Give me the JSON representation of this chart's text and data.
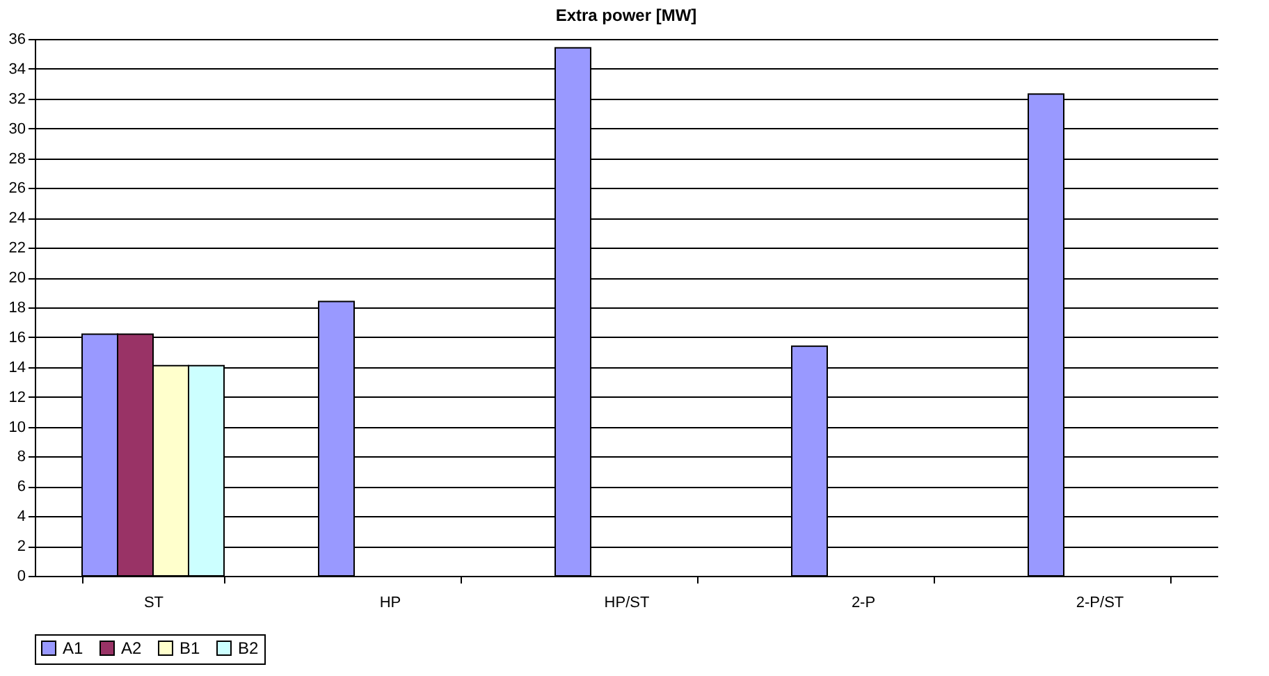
{
  "chart_data": {
    "type": "bar",
    "title": "Extra power [MW]",
    "categories": [
      "ST",
      "HP",
      "HP/ST",
      "2-P",
      "2-P/ST"
    ],
    "series": [
      {
        "name": "A1",
        "color": "#9999ff",
        "values": [
          16.2,
          18.4,
          35.4,
          15.4,
          32.3
        ]
      },
      {
        "name": "A2",
        "color": "#993366",
        "values": [
          16.2,
          null,
          null,
          null,
          null
        ]
      },
      {
        "name": "B1",
        "color": "#ffffcc",
        "values": [
          14.1,
          null,
          null,
          null,
          null
        ]
      },
      {
        "name": "B2",
        "color": "#ccffff",
        "values": [
          14.1,
          null,
          null,
          null,
          null
        ]
      }
    ],
    "ylim": [
      0,
      36
    ],
    "yticks": [
      0,
      2,
      4,
      6,
      8,
      10,
      12,
      14,
      16,
      18,
      20,
      22,
      24,
      26,
      28,
      30,
      32,
      34,
      36
    ],
    "grid": "y",
    "legend": "bottom"
  }
}
